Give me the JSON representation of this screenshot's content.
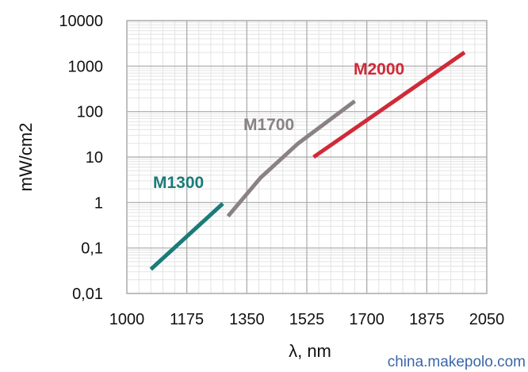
{
  "chart_data": {
    "type": "line",
    "xlabel": "λ, nm",
    "ylabel": "mW/cm2",
    "x_ticks": [
      "1000",
      "1175",
      "1350",
      "1525",
      "1700",
      "1875",
      "2050"
    ],
    "y_ticks": [
      "0,01",
      "0,1",
      "1",
      "10",
      "100",
      "1000",
      "10000"
    ],
    "xlim": [
      1000,
      2050
    ],
    "ylim": [
      0.01,
      10000
    ],
    "y_scale": "log",
    "grid": true,
    "series": [
      {
        "name": "M1300",
        "color": "#1b7b78",
        "points": [
          [
            1070,
            0.034
          ],
          [
            1280,
            0.95
          ]
        ]
      },
      {
        "name": "M1700",
        "color": "#8a8282",
        "points": [
          [
            1295,
            0.5
          ],
          [
            1390,
            3.5
          ],
          [
            1500,
            20
          ],
          [
            1665,
            170
          ]
        ]
      },
      {
        "name": "M2000",
        "color": "#d02a38",
        "points": [
          [
            1545,
            10
          ],
          [
            1985,
            2000
          ]
        ]
      }
    ]
  },
  "watermark": "china.makepolo.com"
}
